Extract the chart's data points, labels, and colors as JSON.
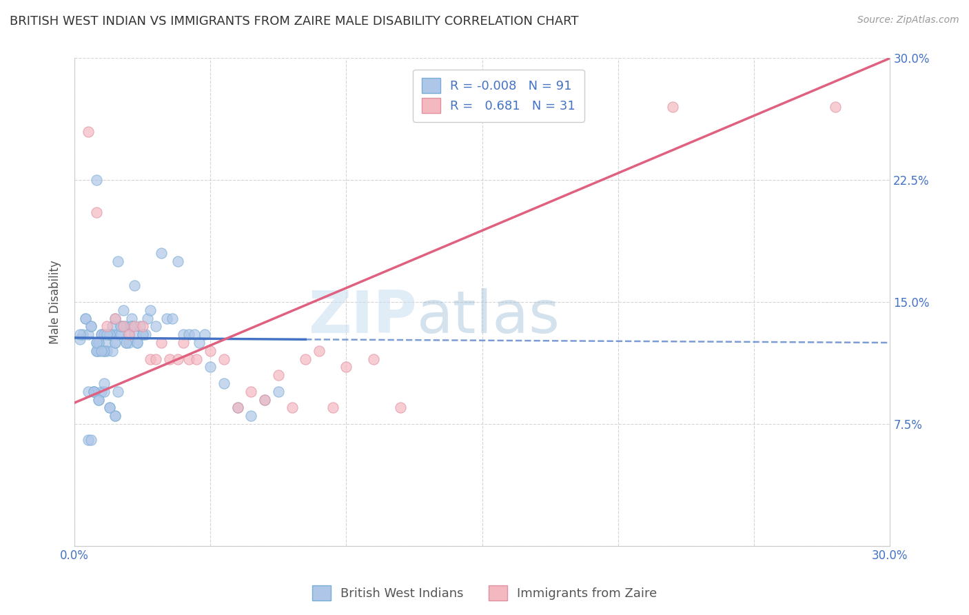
{
  "title": "BRITISH WEST INDIAN VS IMMIGRANTS FROM ZAIRE MALE DISABILITY CORRELATION CHART",
  "source": "Source: ZipAtlas.com",
  "ylabel": "Male Disability",
  "xlim": [
    0.0,
    0.3
  ],
  "ylim": [
    0.0,
    0.3
  ],
  "xticks": [
    0.0,
    0.05,
    0.1,
    0.15,
    0.2,
    0.25,
    0.3
  ],
  "yticks": [
    0.0,
    0.075,
    0.15,
    0.225,
    0.3
  ],
  "xticklabels_show": [
    "0.0%",
    "30.0%"
  ],
  "xticklabels_pos": [
    0.0,
    0.3
  ],
  "yticklabels_right": [
    "7.5%",
    "15.0%",
    "22.5%",
    "30.0%"
  ],
  "yticklabels_right_pos": [
    0.075,
    0.15,
    0.225,
    0.3
  ],
  "legend_entries": [
    {
      "color": "#aec6e8",
      "R": "-0.008",
      "N": "91"
    },
    {
      "color": "#f4b8c1",
      "R": "0.681",
      "N": "31"
    }
  ],
  "legend_labels_bottom": [
    "British West Indians",
    "Immigrants from Zaire"
  ],
  "blue_scatter_x": [
    0.002,
    0.003,
    0.004,
    0.005,
    0.005,
    0.006,
    0.006,
    0.007,
    0.007,
    0.008,
    0.008,
    0.008,
    0.009,
    0.009,
    0.009,
    0.01,
    0.01,
    0.01,
    0.011,
    0.011,
    0.011,
    0.012,
    0.012,
    0.013,
    0.013,
    0.013,
    0.014,
    0.014,
    0.014,
    0.015,
    0.015,
    0.015,
    0.016,
    0.016,
    0.016,
    0.017,
    0.017,
    0.018,
    0.018,
    0.019,
    0.019,
    0.02,
    0.02,
    0.021,
    0.021,
    0.022,
    0.022,
    0.023,
    0.024,
    0.025,
    0.026,
    0.027,
    0.028,
    0.03,
    0.032,
    0.034,
    0.036,
    0.038,
    0.04,
    0.042,
    0.044,
    0.046,
    0.048,
    0.05,
    0.055,
    0.06,
    0.065,
    0.07,
    0.075,
    0.008,
    0.009,
    0.011,
    0.013,
    0.015,
    0.017,
    0.019,
    0.021,
    0.023,
    0.025,
    0.005,
    0.007,
    0.009,
    0.011,
    0.013,
    0.015,
    0.002,
    0.004,
    0.006,
    0.008,
    0.01,
    0.012
  ],
  "blue_scatter_y": [
    0.127,
    0.13,
    0.14,
    0.13,
    0.065,
    0.135,
    0.065,
    0.095,
    0.095,
    0.225,
    0.12,
    0.125,
    0.125,
    0.12,
    0.09,
    0.13,
    0.13,
    0.095,
    0.12,
    0.13,
    0.095,
    0.125,
    0.12,
    0.13,
    0.13,
    0.085,
    0.135,
    0.13,
    0.12,
    0.14,
    0.125,
    0.08,
    0.13,
    0.175,
    0.095,
    0.135,
    0.13,
    0.145,
    0.135,
    0.135,
    0.125,
    0.13,
    0.125,
    0.14,
    0.135,
    0.13,
    0.16,
    0.125,
    0.135,
    0.13,
    0.13,
    0.14,
    0.145,
    0.135,
    0.18,
    0.14,
    0.14,
    0.175,
    0.13,
    0.13,
    0.13,
    0.125,
    0.13,
    0.11,
    0.1,
    0.085,
    0.08,
    0.09,
    0.095,
    0.12,
    0.125,
    0.12,
    0.13,
    0.125,
    0.135,
    0.125,
    0.135,
    0.125,
    0.13,
    0.095,
    0.095,
    0.09,
    0.1,
    0.085,
    0.08,
    0.13,
    0.14,
    0.135,
    0.125,
    0.12,
    0.13
  ],
  "pink_scatter_x": [
    0.005,
    0.008,
    0.012,
    0.015,
    0.018,
    0.02,
    0.022,
    0.025,
    0.028,
    0.03,
    0.032,
    0.035,
    0.038,
    0.04,
    0.042,
    0.045,
    0.05,
    0.055,
    0.06,
    0.065,
    0.07,
    0.075,
    0.08,
    0.085,
    0.09,
    0.095,
    0.1,
    0.11,
    0.12,
    0.22,
    0.28
  ],
  "pink_scatter_y": [
    0.255,
    0.205,
    0.135,
    0.14,
    0.135,
    0.13,
    0.135,
    0.135,
    0.115,
    0.115,
    0.125,
    0.115,
    0.115,
    0.125,
    0.115,
    0.115,
    0.12,
    0.115,
    0.085,
    0.095,
    0.09,
    0.105,
    0.085,
    0.115,
    0.12,
    0.085,
    0.11,
    0.115,
    0.085,
    0.27,
    0.27
  ],
  "blue_solid_line_x": [
    0.0,
    0.085
  ],
  "blue_solid_line_y": [
    0.128,
    0.127
  ],
  "blue_dashed_line_x": [
    0.085,
    0.3
  ],
  "blue_dashed_line_y": [
    0.127,
    0.125
  ],
  "blue_line_color": "#4472c4",
  "pink_line_x": [
    0.0,
    0.3
  ],
  "pink_line_y": [
    0.088,
    0.3
  ],
  "pink_line_color": "#e06080",
  "blue_dot_color": "#aec6e8",
  "pink_dot_color": "#f4b8c1",
  "dot_edge_blue": "#7aadd4",
  "dot_edge_pink": "#e090a0",
  "watermark_zip": "ZIP",
  "watermark_atlas": "atlas",
  "background_color": "#ffffff",
  "grid_color": "#d0d0d0",
  "title_color": "#333333",
  "tick_label_color": "#4472c4"
}
